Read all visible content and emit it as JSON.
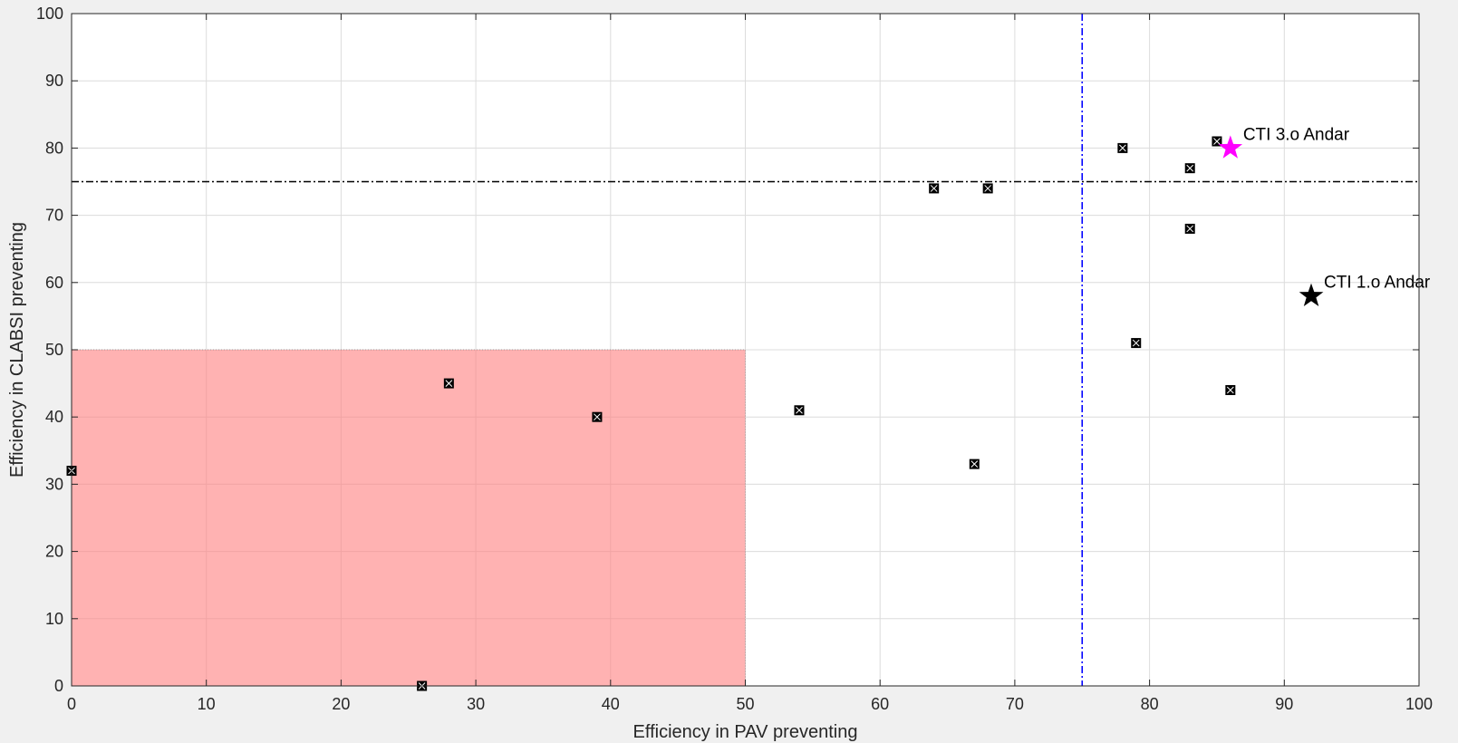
{
  "chart_data": {
    "type": "scatter",
    "title": "",
    "xlabel": "Efficiency in PAV preventing",
    "ylabel": "Efficiency in CLABSI preventing",
    "xlim": [
      0,
      100
    ],
    "ylim": [
      0,
      100
    ],
    "xticks": [
      0,
      10,
      20,
      30,
      40,
      50,
      60,
      70,
      80,
      90,
      100
    ],
    "yticks": [
      0,
      10,
      20,
      30,
      40,
      50,
      60,
      70,
      80,
      90,
      100
    ],
    "grid": true,
    "background_color": "#ffffff",
    "figure_color": "#f0f0f0",
    "region": {
      "x": [
        0,
        50
      ],
      "y": [
        0,
        50
      ],
      "color": "#ff7f7f",
      "opacity": 0.6
    },
    "reference_lines": [
      {
        "orientation": "horizontal",
        "value": 75,
        "color": "#000000",
        "style": "dash-dot"
      },
      {
        "orientation": "vertical",
        "value": 75,
        "color": "#0000ff",
        "style": "dash-dot"
      }
    ],
    "points": [
      {
        "x": 0,
        "y": 32
      },
      {
        "x": 26,
        "y": 0
      },
      {
        "x": 28,
        "y": 45
      },
      {
        "x": 39,
        "y": 40
      },
      {
        "x": 54,
        "y": 41
      },
      {
        "x": 64,
        "y": 74
      },
      {
        "x": 67,
        "y": 33
      },
      {
        "x": 68,
        "y": 74
      },
      {
        "x": 78,
        "y": 80
      },
      {
        "x": 79,
        "y": 51
      },
      {
        "x": 83,
        "y": 77
      },
      {
        "x": 83,
        "y": 68
      },
      {
        "x": 85,
        "y": 81
      },
      {
        "x": 86,
        "y": 44
      }
    ],
    "highlights": [
      {
        "x": 86,
        "y": 80,
        "label": "CTI 3.o Andar",
        "color": "#ff00ff",
        "marker": "star"
      },
      {
        "x": 92,
        "y": 58,
        "label": "CTI 1.o Andar",
        "color": "#000000",
        "marker": "star"
      }
    ]
  }
}
